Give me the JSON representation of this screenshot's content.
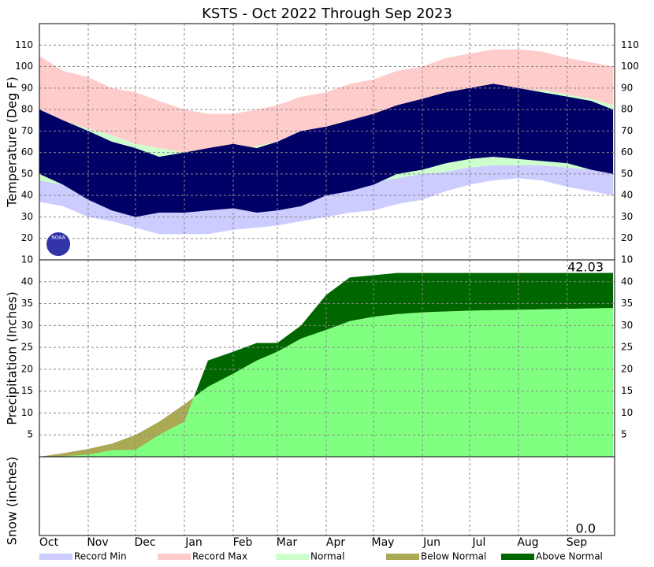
{
  "chart_data": [
    {
      "type": "area",
      "title": "KSTS - Oct 2022 Through Sep 2023",
      "ylabel": "Temperature (Deg F)",
      "ylim": [
        10,
        120
      ],
      "yticks": [
        10,
        20,
        30,
        40,
        50,
        60,
        70,
        80,
        90,
        100,
        110
      ],
      "grid": true,
      "logo": "NOAA",
      "x": [
        0,
        15,
        31,
        46,
        61,
        76,
        92,
        107,
        123,
        138,
        151,
        166,
        182,
        197,
        212,
        227,
        243,
        258,
        273,
        288,
        304,
        319,
        335,
        350,
        364
      ],
      "series": [
        {
          "name": "Record Max",
          "color": "#ffcccc",
          "values": [
            105,
            98,
            95,
            90,
            88,
            84,
            80,
            78,
            78,
            80,
            82,
            86,
            88,
            92,
            94,
            98,
            100,
            104,
            106,
            108,
            108,
            107,
            104,
            102,
            100
          ]
        },
        {
          "name": "Normal",
          "color": "#ccffcc",
          "high": [
            78,
            75,
            71,
            68,
            64,
            62,
            60,
            60,
            61,
            63,
            65,
            68,
            70,
            73,
            75,
            78,
            80,
            83,
            85,
            88,
            89,
            89,
            87,
            85,
            82
          ],
          "low": [
            47,
            45,
            42,
            40,
            39,
            37,
            37,
            37,
            38,
            39,
            40,
            41,
            43,
            45,
            46,
            48,
            50,
            51,
            53,
            54,
            54,
            54,
            53,
            52,
            50
          ]
        },
        {
          "name": "Record Min",
          "color": "#ccccff",
          "values": [
            37,
            35,
            30,
            28,
            25,
            22,
            22,
            22,
            24,
            25,
            26,
            28,
            30,
            32,
            33,
            36,
            38,
            42,
            45,
            47,
            48,
            47,
            44,
            42,
            40
          ]
        },
        {
          "color": "#000066",
          "high": [
            80,
            75,
            70,
            65,
            62,
            58,
            60,
            62,
            64,
            62,
            65,
            70,
            72,
            75,
            78,
            82,
            85,
            88,
            90,
            92,
            90,
            88,
            86,
            84,
            80
          ],
          "low": [
            50,
            45,
            38,
            33,
            30,
            32,
            32,
            33,
            34,
            32,
            33,
            35,
            40,
            42,
            45,
            50,
            52,
            55,
            57,
            58,
            57,
            56,
            55,
            52,
            50
          ]
        }
      ]
    },
    {
      "type": "area",
      "ylabel": "Precipitation (Inches)",
      "ylim": [
        0,
        45
      ],
      "yticks": [
        5,
        10,
        15,
        20,
        25,
        30,
        35,
        40
      ],
      "grid": true,
      "total_label": "42.03",
      "color": "#80ff80",
      "x": [
        0,
        15,
        31,
        46,
        61,
        76,
        92,
        107,
        123,
        138,
        151,
        166,
        182,
        197,
        212,
        227,
        243,
        258,
        273,
        288,
        304,
        319,
        335,
        350,
        364
      ],
      "series": [
        {
          "name": "Below Normal",
          "color": "#aaaa55",
          "values": [
            0,
            0.8,
            1.8,
            3,
            5,
            8,
            12,
            16,
            19,
            22,
            24,
            27,
            29,
            31,
            32,
            32.6,
            33,
            33.2,
            33.4,
            33.5,
            33.6,
            33.7,
            33.8,
            33.9,
            34
          ]
        },
        {
          "name": "Above Normal",
          "color": "#006600",
          "values": [
            0,
            0.1,
            0.5,
            1.5,
            1.6,
            5,
            8,
            22,
            24,
            26,
            26,
            30,
            37,
            41,
            41.5,
            42,
            42,
            42,
            42,
            42,
            42,
            42,
            42,
            42,
            42.03
          ]
        }
      ]
    },
    {
      "type": "area",
      "ylabel": "Snow (inches)",
      "total_label": "0.0",
      "xlim": [
        0,
        365
      ],
      "xticks": [
        {
          "value": 0,
          "label": "Oct"
        },
        {
          "value": 31,
          "label": "Nov"
        },
        {
          "value": 61,
          "label": "Dec"
        },
        {
          "value": 92,
          "label": "Jan"
        },
        {
          "value": 123,
          "label": "Feb"
        },
        {
          "value": 151,
          "label": "Mar"
        },
        {
          "value": 182,
          "label": "Apr"
        },
        {
          "value": 212,
          "label": "May"
        },
        {
          "value": 243,
          "label": "Jun"
        },
        {
          "value": 273,
          "label": "Jul"
        },
        {
          "value": 304,
          "label": "Aug"
        },
        {
          "value": 335,
          "label": "Sep"
        }
      ]
    }
  ]
}
